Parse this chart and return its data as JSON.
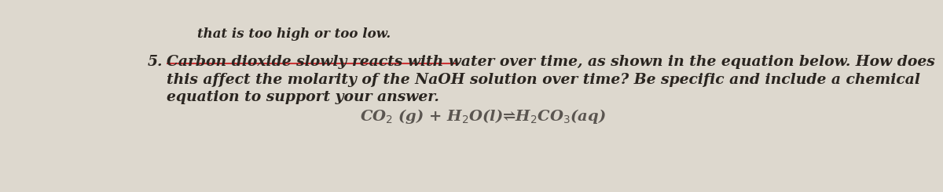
{
  "background_color": "#ddd8ce",
  "top_text": "that is too high or too low.",
  "question_number": "5.",
  "line1": "Carbon dioxide slowly reacts with water over time, as shown in the equation below. How does",
  "line2": "this affect the molarity of the NaOH solution over time? Be specific and include a chemical",
  "line3": "equation to support your answer.",
  "underline_color": "#cc3333",
  "font_color": "#2a2520",
  "font_color_eq": "#5a5550",
  "font_size_main": 13.5,
  "font_size_top": 12,
  "font_size_eq": 14,
  "eq_line1": "CO",
  "eq_line2": "2",
  "equation_full": "CO$_2$ (g) + H$_2$O(l)⇌H$_2$CO$_3$(aq)"
}
